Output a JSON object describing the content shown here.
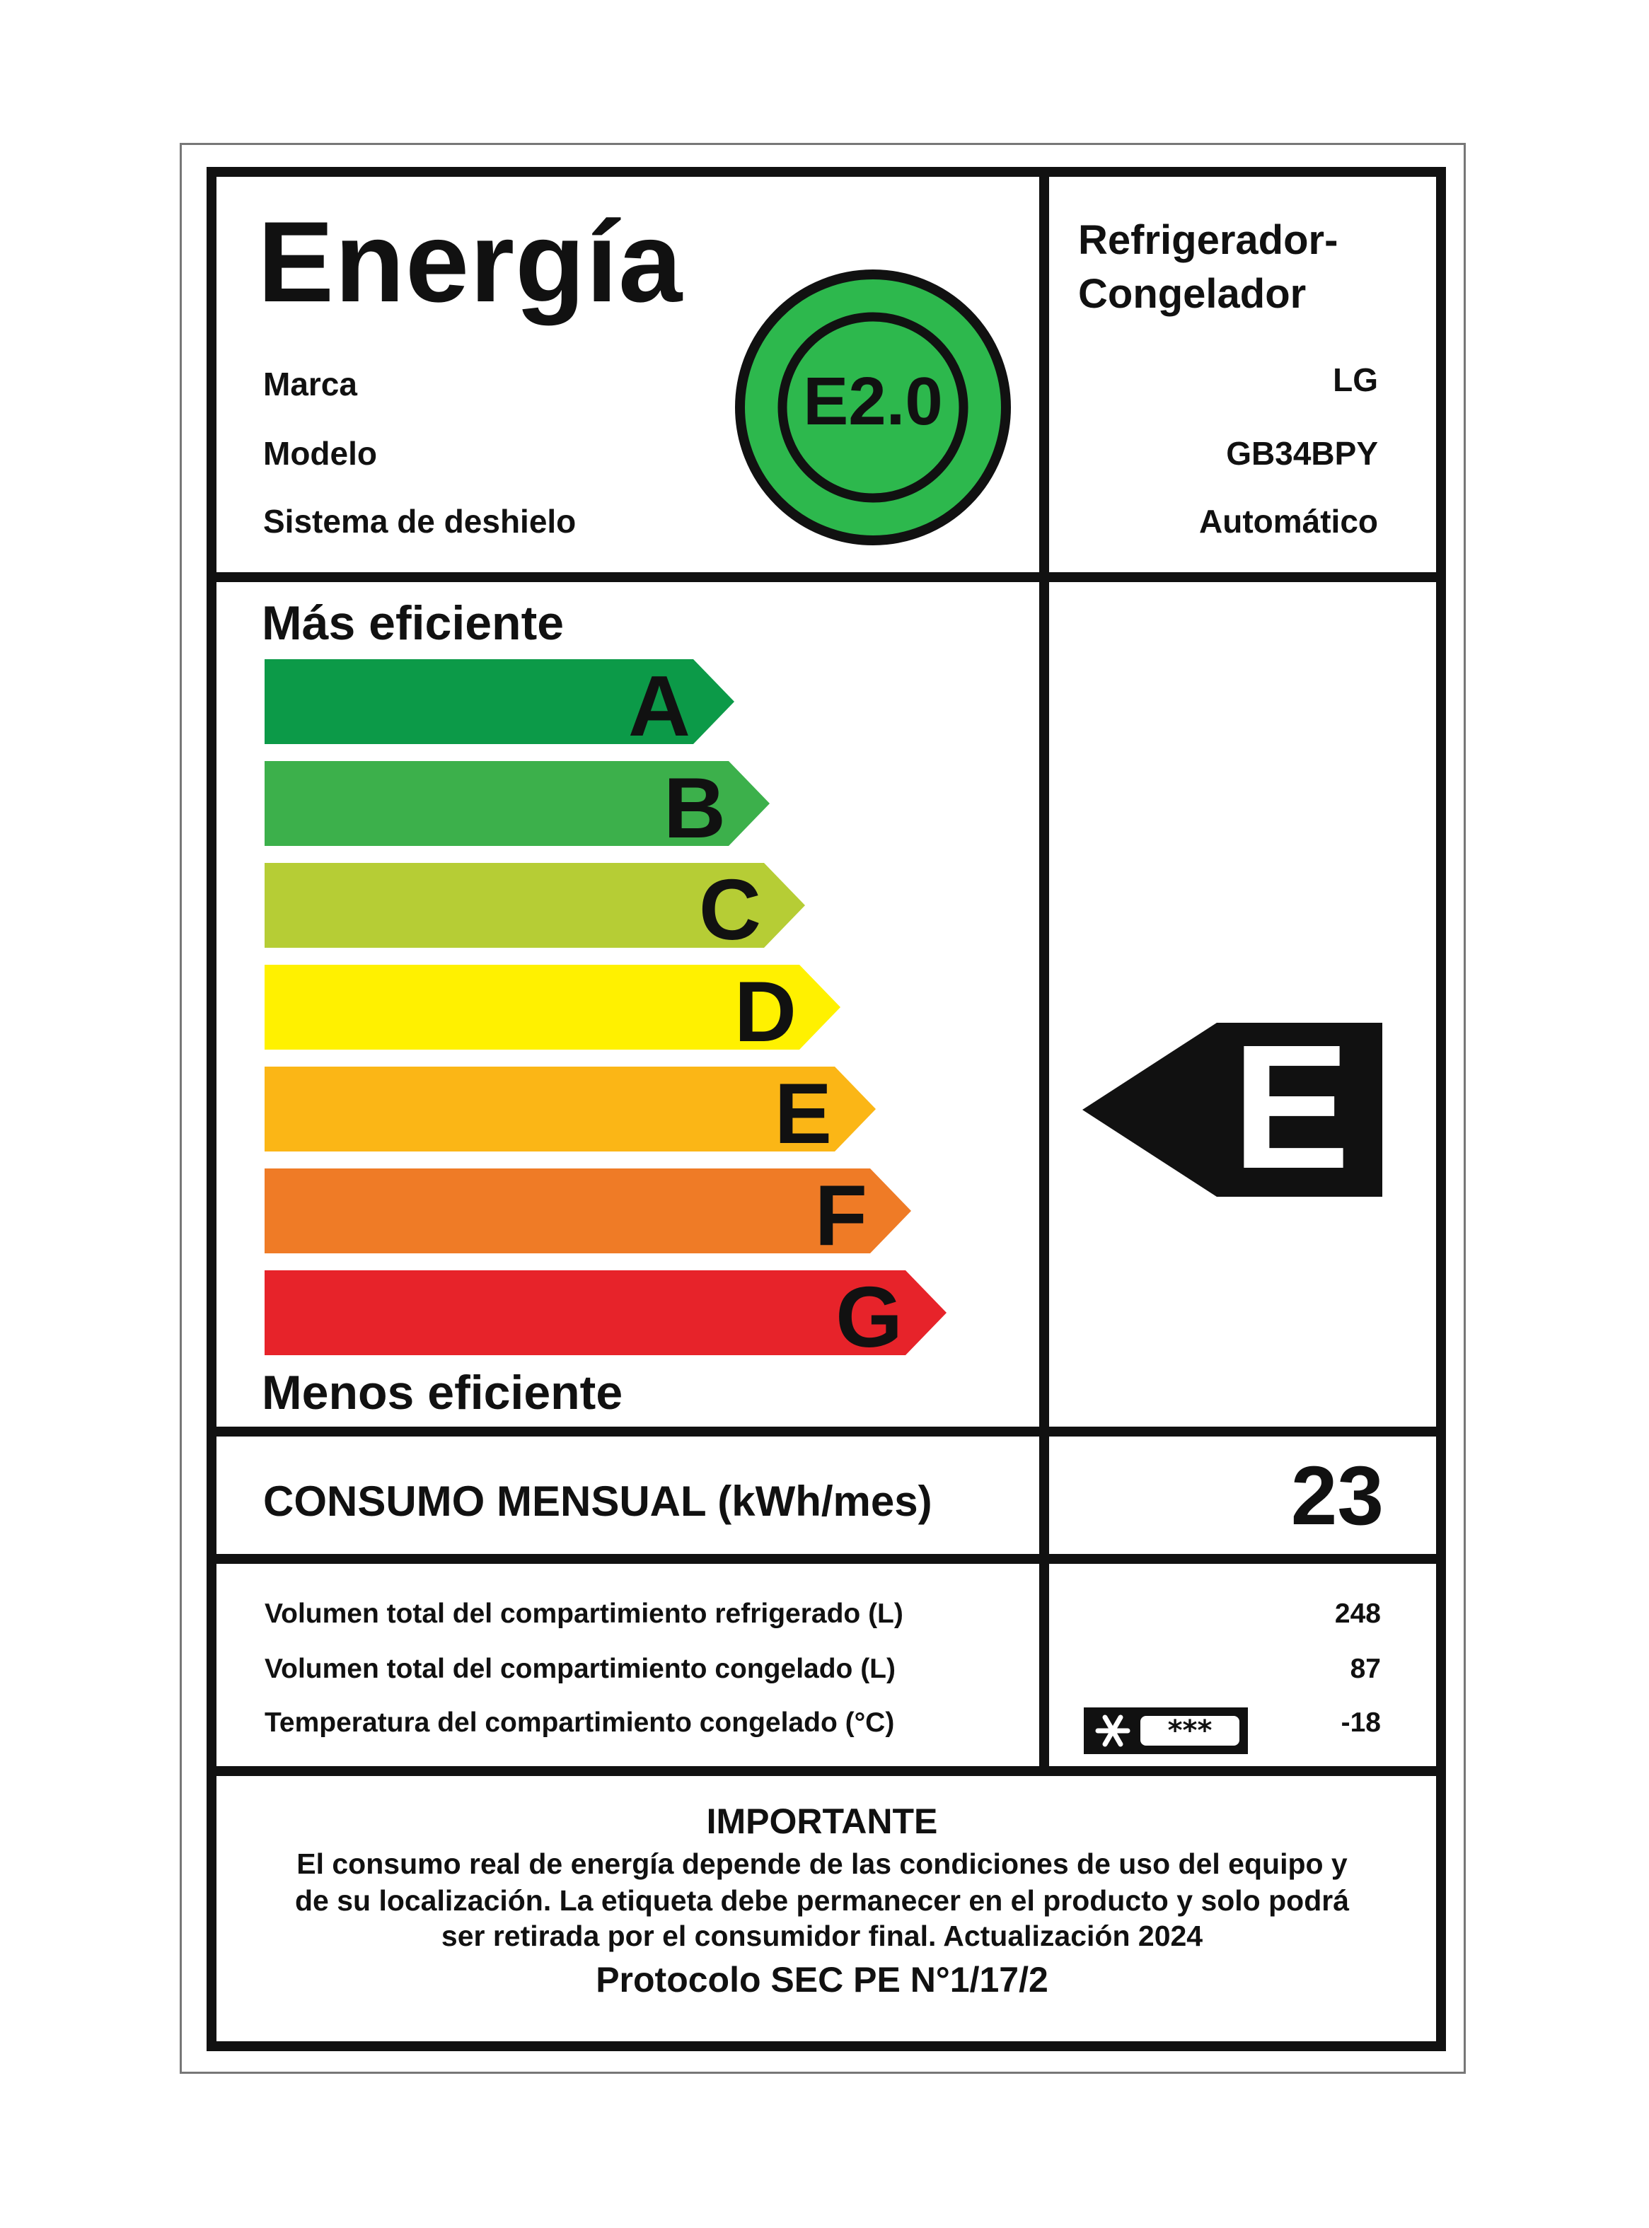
{
  "header": {
    "title": "Energía",
    "fields": [
      {
        "label": "Marca",
        "value": "LG"
      },
      {
        "label": "Modelo",
        "value": "GB34BPY"
      },
      {
        "label": "Sistema de deshielo",
        "value": "Automático"
      }
    ],
    "product_type_line1": "Refrigerador-",
    "product_type_line2": "Congelador",
    "logo_text": "E2.0",
    "logo_color": "#2db84d"
  },
  "scale": {
    "top_label": "Más eficiente",
    "bottom_label": "Menos eficiente",
    "classes": [
      {
        "letter": "A",
        "color": "#0c9a48"
      },
      {
        "letter": "B",
        "color": "#3cb04b"
      },
      {
        "letter": "C",
        "color": "#b6cd35"
      },
      {
        "letter": "D",
        "color": "#fff100"
      },
      {
        "letter": "E",
        "color": "#fbb616"
      },
      {
        "letter": "F",
        "color": "#ef7b26"
      },
      {
        "letter": "G",
        "color": "#e7232a"
      }
    ],
    "rating": "E"
  },
  "consumption": {
    "label": "CONSUMO MENSUAL (kWh/mes)",
    "value": "23"
  },
  "specs": [
    {
      "label": "Volumen total del compartimiento refrigerado (L)",
      "value": "248"
    },
    {
      "label": "Volumen total del compartimiento congelado (L)",
      "value": "87"
    },
    {
      "label": "Temperatura del compartimiento congelado (°C)",
      "value": "-18",
      "icon": "freezer-star-icon"
    }
  ],
  "notice": {
    "title": "IMPORTANTE",
    "lines": [
      "El consumo real de energía depende de las condiciones de uso del equipo y",
      "de su localización. La etiqueta debe permanecer en el producto y solo podrá",
      "ser retirada por el consumidor final. Actualización 2024"
    ],
    "protocol": "Protocolo SEC PE N°1/17/2"
  }
}
